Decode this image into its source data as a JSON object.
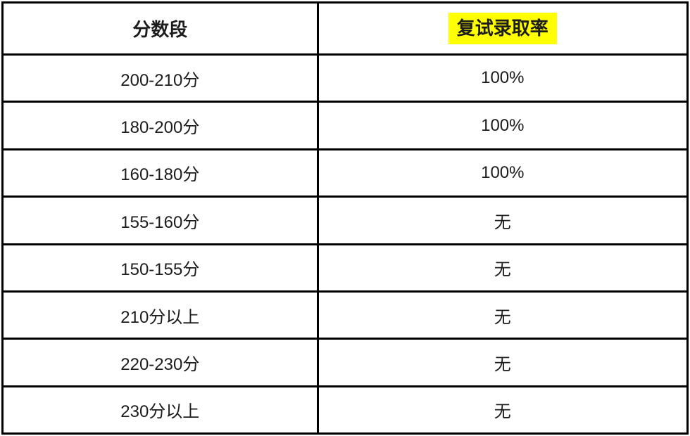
{
  "style": {
    "border_color": "#000000",
    "text_color": "#1c1c1c",
    "highlight_bg": "#ffff00",
    "page_bg": "#ffffff"
  },
  "table": {
    "headers": [
      {
        "label": "分数段",
        "highlighted": false
      },
      {
        "label": "复试录取率",
        "highlighted": true
      }
    ],
    "rows": [
      {
        "score_range": "200-210分",
        "admission_rate": "100%"
      },
      {
        "score_range": "180-200分",
        "admission_rate": "100%"
      },
      {
        "score_range": "160-180分",
        "admission_rate": "100%"
      },
      {
        "score_range": "155-160分",
        "admission_rate": "无"
      },
      {
        "score_range": "150-155分",
        "admission_rate": "无"
      },
      {
        "score_range": "210分以上",
        "admission_rate": "无"
      },
      {
        "score_range": "220-230分",
        "admission_rate": "无"
      },
      {
        "score_range": "230分以上",
        "admission_rate": "无"
      }
    ]
  }
}
